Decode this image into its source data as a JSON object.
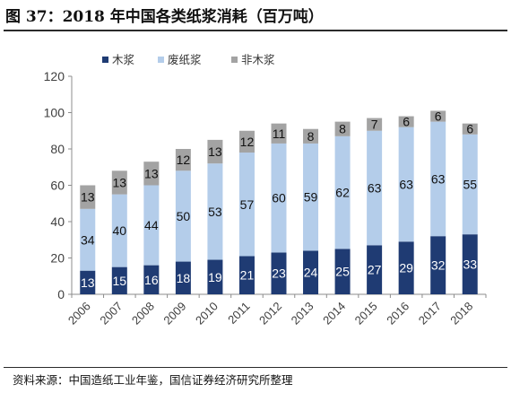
{
  "figure": {
    "title": "图 37：2018 年中国各类纸浆消耗（百万吨）",
    "source": "资料来源：中国造纸工业年鉴，国信证券经济研究所整理"
  },
  "chart_data": {
    "type": "bar",
    "stacked": true,
    "categories": [
      "2006",
      "2007",
      "2008",
      "2009",
      "2010",
      "2011",
      "2012",
      "2013",
      "2014",
      "2015",
      "2016",
      "2017",
      "2018"
    ],
    "series": [
      {
        "name": "木浆",
        "color": "#1f3b73",
        "values": [
          13,
          15,
          16,
          18,
          19,
          21,
          23,
          24,
          25,
          27,
          29,
          32,
          33
        ]
      },
      {
        "name": "废纸浆",
        "color": "#b4cdea",
        "values": [
          34,
          40,
          44,
          50,
          53,
          57,
          60,
          59,
          62,
          63,
          63,
          63,
          55
        ]
      },
      {
        "name": "非木浆",
        "color": "#a3a3a3",
        "values": [
          13,
          13,
          13,
          12,
          13,
          12,
          11,
          8,
          8,
          7,
          6,
          6,
          6
        ]
      }
    ],
    "ylim": [
      0,
      120
    ],
    "yticks": [
      0,
      20,
      40,
      60,
      80,
      100,
      120
    ],
    "legend_position": "top-left",
    "grid": false
  }
}
